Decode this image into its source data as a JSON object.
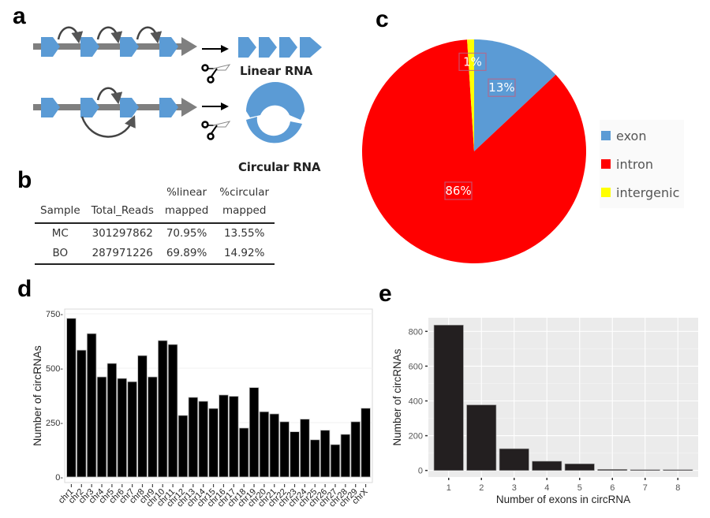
{
  "panels": {
    "a": {
      "letter": "a",
      "linear_label": "Linear RNA",
      "circular_label": "Circular RNA",
      "icons": [
        "gene-track-icon",
        "splice-arrow-icon",
        "scissors-icon",
        "circular-rna-icon"
      ],
      "colors": {
        "exon": "#5b9bd5",
        "intron": "#7f7f7f",
        "arrow": "#000000"
      }
    },
    "b": {
      "letter": "b",
      "table": {
        "headers": [
          {
            "top": "",
            "bottom": "Sample"
          },
          {
            "top": "",
            "bottom": "Total_Reads"
          },
          {
            "top": "%linear",
            "bottom": "mapped"
          },
          {
            "top": "%circular",
            "bottom": "mapped"
          }
        ],
        "rows": [
          [
            "MC",
            "301297862",
            "70.95%",
            "13.55%"
          ],
          [
            "BO",
            "287971226",
            "69.89%",
            "14.92%"
          ]
        ]
      }
    },
    "c": {
      "letter": "c"
    },
    "d": {
      "letter": "d"
    },
    "e": {
      "letter": "e"
    }
  },
  "chart_data": [
    {
      "id": "c",
      "type": "pie",
      "title": "",
      "slices": [
        {
          "label": "exon",
          "value": 13,
          "display": "13%",
          "color": "#5b9bd5"
        },
        {
          "label": "intron",
          "value": 86,
          "display": "86%",
          "color": "#ff0000"
        },
        {
          "label": "intergenic",
          "value": 1,
          "display": "1%",
          "color": "#ffff00"
        }
      ],
      "start_angle_deg": 0,
      "direction": "clockwise",
      "legend": {
        "position": "right",
        "entries": [
          "exon",
          "intron",
          "intergenic"
        ]
      }
    },
    {
      "id": "d",
      "type": "bar",
      "title": "",
      "xlabel": "",
      "ylabel": "Number of circRNAs",
      "ylim": [
        0,
        780
      ],
      "yticks": [
        0,
        250,
        500,
        750
      ],
      "ytick_labels": [
        "0-",
        "250-",
        "500-",
        "750-"
      ],
      "grid": false,
      "categories": [
        "chr1",
        "chr2",
        "chr3",
        "chr4",
        "chr5",
        "chr6",
        "chr7",
        "chr8",
        "chr9",
        "chr10",
        "chr11",
        "chr12",
        "chr13",
        "chr14",
        "chr15",
        "chr16",
        "chr17",
        "chr18",
        "chr19",
        "chr20",
        "chr21",
        "chr22",
        "chr23",
        "chr24",
        "chr25",
        "chr26",
        "chr27",
        "chr28",
        "chr29",
        "chrX"
      ],
      "values": [
        729,
        583,
        659,
        460,
        522,
        453,
        438,
        558,
        460,
        627,
        609,
        283,
        366,
        348,
        315,
        377,
        371,
        225,
        411,
        300,
        290,
        254,
        208,
        266,
        171,
        215,
        149,
        196,
        254,
        316
      ],
      "bar_color": "#000000"
    },
    {
      "id": "e",
      "type": "bar",
      "title": "",
      "xlabel": "Number of exons in circRNA",
      "ylabel": "Number of circRNAs",
      "ylim": [
        -40,
        880
      ],
      "yticks": [
        0,
        200,
        400,
        600,
        800
      ],
      "ytick_labels": [
        "0",
        "200",
        "400",
        "600",
        "800"
      ],
      "grid": true,
      "categories": [
        "1",
        "2",
        "3",
        "4",
        "5",
        "6",
        "7",
        "8"
      ],
      "values": [
        836,
        377,
        125,
        53,
        38,
        6,
        3,
        3
      ],
      "bar_color": "#231f20",
      "panel_background": "#ebebeb"
    }
  ]
}
